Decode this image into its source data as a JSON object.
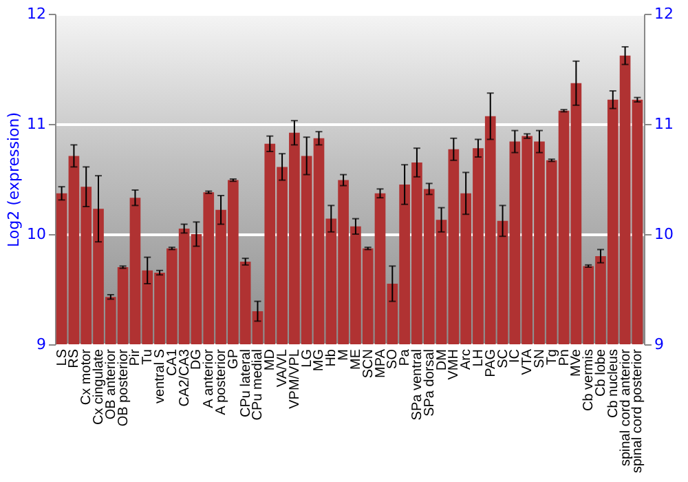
{
  "chart_data": {
    "type": "bar",
    "ylabel": "Log2 (expression)",
    "categories": [
      "LS",
      "RS",
      "Cx motor",
      "Cx cingulate",
      "OB anterior",
      "OB posterior",
      "Pir",
      "Tu",
      "ventral S",
      "CA1",
      "CA2/CA3",
      "DG",
      "A anterior",
      "A posterior",
      "GP",
      "CPu lateral",
      "CPu medial",
      "MD",
      "VA/VL",
      "VPM/VPL",
      "LG",
      "MG",
      "Hb",
      "M",
      "ME",
      "SCN",
      "MPA",
      "SO",
      "Pa",
      "SPa ventral",
      "SPa dorsal",
      "DM",
      "VMH",
      "Arc",
      "LH",
      "PAG",
      "SC",
      "IC",
      "VTA",
      "SN",
      "Tg",
      "Pn",
      "MVe",
      "Cb vermis",
      "Cb lobe",
      "Cb nucleus",
      "spinal cord anterior",
      "spinal cord posterior"
    ],
    "values": [
      10.37,
      10.71,
      10.43,
      10.23,
      9.43,
      9.7,
      10.33,
      9.67,
      9.65,
      9.87,
      10.05,
      10.0,
      10.38,
      10.22,
      10.49,
      9.75,
      9.3,
      10.82,
      10.61,
      10.92,
      10.71,
      10.87,
      10.14,
      10.49,
      10.07,
      9.87,
      10.37,
      9.55,
      10.45,
      10.65,
      10.41,
      10.13,
      10.77,
      10.37,
      10.78,
      11.07,
      10.12,
      10.84,
      10.89,
      10.84,
      10.67,
      11.12,
      11.37,
      9.71,
      9.8,
      11.22,
      11.62,
      11.22
    ],
    "errors": [
      0.06,
      0.1,
      0.18,
      0.3,
      0.02,
      0.01,
      0.07,
      0.12,
      0.02,
      0.01,
      0.04,
      0.11,
      0.01,
      0.13,
      0.01,
      0.03,
      0.09,
      0.07,
      0.12,
      0.11,
      0.17,
      0.06,
      0.12,
      0.05,
      0.07,
      0.01,
      0.04,
      0.16,
      0.18,
      0.13,
      0.05,
      0.11,
      0.1,
      0.19,
      0.08,
      0.21,
      0.14,
      0.1,
      0.02,
      0.1,
      0.01,
      0.01,
      0.2,
      0.01,
      0.06,
      0.08,
      0.08,
      0.02
    ],
    "color": "#b03232",
    "ylim": [
      9,
      12
    ],
    "yticks": [
      9,
      10,
      11,
      12
    ],
    "y2lim": [
      9,
      12
    ],
    "y2ticks": [
      9,
      10,
      11,
      12
    ],
    "grid": "y"
  }
}
